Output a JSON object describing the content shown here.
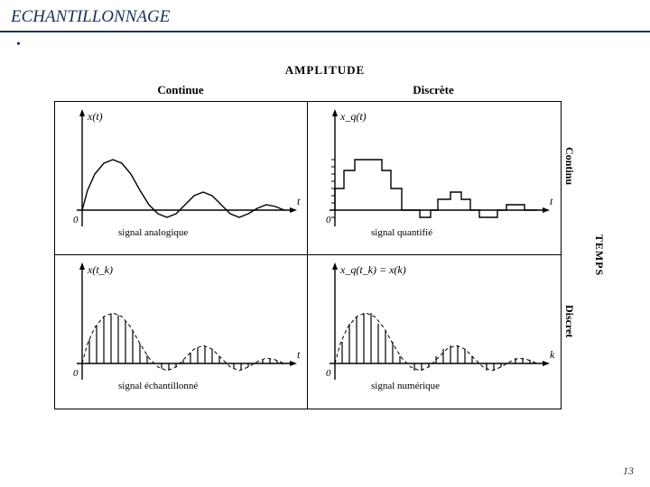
{
  "page": {
    "title": "ECHANTILLONNAGE",
    "bullet": "•",
    "page_number": "13"
  },
  "figure": {
    "top_axis_label": "AMPLITUDE",
    "side_axis_label": "TEMPS",
    "col_headers": [
      "Continue",
      "Discrète"
    ],
    "row_headers": [
      "Continu",
      "Discret"
    ],
    "colors": {
      "stroke": "#000000",
      "bg": "#ffffff",
      "border": "#000000"
    },
    "line_width": 1.4,
    "panels": {
      "tl": {
        "y_label": "x(t)",
        "x_label": "t",
        "origin_label": "0",
        "caption": "signal analogique",
        "curve": [
          [
            0,
            0
          ],
          [
            6,
            22
          ],
          [
            14,
            40
          ],
          [
            24,
            52
          ],
          [
            34,
            56
          ],
          [
            44,
            52
          ],
          [
            54,
            40
          ],
          [
            64,
            22
          ],
          [
            74,
            6
          ],
          [
            84,
            -4
          ],
          [
            94,
            -8
          ],
          [
            104,
            -4
          ],
          [
            114,
            6
          ],
          [
            124,
            16
          ],
          [
            134,
            20
          ],
          [
            144,
            16
          ],
          [
            154,
            6
          ],
          [
            164,
            -4
          ],
          [
            174,
            -8
          ],
          [
            184,
            -4
          ],
          [
            194,
            2
          ],
          [
            204,
            6
          ],
          [
            214,
            4
          ],
          [
            224,
            0
          ]
        ]
      },
      "tr": {
        "y_label": "x_q(t)",
        "x_label": "t",
        "origin_label": "0",
        "caption": "signal quantifié",
        "steps": [
          [
            0,
            0
          ],
          [
            0,
            24
          ],
          [
            10,
            24
          ],
          [
            10,
            44
          ],
          [
            22,
            44
          ],
          [
            22,
            56
          ],
          [
            52,
            56
          ],
          [
            52,
            44
          ],
          [
            62,
            44
          ],
          [
            62,
            24
          ],
          [
            74,
            24
          ],
          [
            74,
            0
          ],
          [
            94,
            0
          ],
          [
            94,
            -8
          ],
          [
            106,
            -8
          ],
          [
            106,
            0
          ],
          [
            114,
            0
          ],
          [
            114,
            12
          ],
          [
            128,
            12
          ],
          [
            128,
            20
          ],
          [
            140,
            20
          ],
          [
            140,
            12
          ],
          [
            150,
            12
          ],
          [
            150,
            0
          ],
          [
            160,
            0
          ],
          [
            160,
            -8
          ],
          [
            180,
            -8
          ],
          [
            180,
            0
          ],
          [
            190,
            0
          ],
          [
            190,
            6
          ],
          [
            210,
            6
          ],
          [
            210,
            0
          ],
          [
            224,
            0
          ]
        ],
        "y_ticks": [
          -8,
          0,
          8,
          16,
          24,
          32,
          40,
          48,
          56
        ]
      },
      "bl": {
        "y_label": "x(t_k)",
        "x_label": "t",
        "origin_label": "0",
        "caption": "signal échantillonné",
        "envelope": [
          [
            0,
            0
          ],
          [
            6,
            22
          ],
          [
            14,
            40
          ],
          [
            24,
            52
          ],
          [
            34,
            56
          ],
          [
            44,
            52
          ],
          [
            54,
            40
          ],
          [
            64,
            22
          ],
          [
            74,
            6
          ],
          [
            84,
            -4
          ],
          [
            94,
            -8
          ],
          [
            104,
            -4
          ],
          [
            114,
            6
          ],
          [
            124,
            16
          ],
          [
            134,
            20
          ],
          [
            144,
            16
          ],
          [
            154,
            6
          ],
          [
            164,
            -4
          ],
          [
            174,
            -8
          ],
          [
            184,
            -4
          ],
          [
            194,
            2
          ],
          [
            204,
            6
          ],
          [
            214,
            4
          ],
          [
            224,
            0
          ]
        ],
        "samples_x": [
          0,
          8,
          16,
          24,
          32,
          40,
          48,
          56,
          64,
          72,
          80,
          88,
          96,
          104,
          112,
          120,
          128,
          136,
          144,
          152,
          160,
          168,
          176,
          184,
          192,
          200,
          208,
          216,
          224
        ]
      },
      "br": {
        "y_label": "x_q(t_k) = x(k)",
        "x_label": "k",
        "origin_label": "0",
        "caption": "signal numérique",
        "envelope": [
          [
            0,
            0
          ],
          [
            6,
            22
          ],
          [
            14,
            40
          ],
          [
            24,
            52
          ],
          [
            34,
            56
          ],
          [
            44,
            52
          ],
          [
            54,
            40
          ],
          [
            64,
            22
          ],
          [
            74,
            6
          ],
          [
            84,
            -4
          ],
          [
            94,
            -8
          ],
          [
            104,
            -4
          ],
          [
            114,
            6
          ],
          [
            124,
            16
          ],
          [
            134,
            20
          ],
          [
            144,
            16
          ],
          [
            154,
            6
          ],
          [
            164,
            -4
          ],
          [
            174,
            -8
          ],
          [
            184,
            -4
          ],
          [
            194,
            2
          ],
          [
            204,
            6
          ],
          [
            214,
            4
          ],
          [
            224,
            0
          ]
        ],
        "samples": [
          [
            0,
            0
          ],
          [
            8,
            24
          ],
          [
            16,
            44
          ],
          [
            24,
            52
          ],
          [
            32,
            56
          ],
          [
            40,
            56
          ],
          [
            48,
            44
          ],
          [
            56,
            36
          ],
          [
            64,
            24
          ],
          [
            72,
            8
          ],
          [
            80,
            0
          ],
          [
            88,
            -8
          ],
          [
            96,
            -8
          ],
          [
            104,
            -4
          ],
          [
            112,
            8
          ],
          [
            120,
            16
          ],
          [
            128,
            20
          ],
          [
            136,
            20
          ],
          [
            144,
            16
          ],
          [
            152,
            8
          ],
          [
            160,
            0
          ],
          [
            168,
            -8
          ],
          [
            176,
            -8
          ],
          [
            184,
            -4
          ],
          [
            192,
            0
          ],
          [
            200,
            6
          ],
          [
            208,
            6
          ],
          [
            216,
            4
          ],
          [
            224,
            0
          ]
        ]
      }
    }
  }
}
